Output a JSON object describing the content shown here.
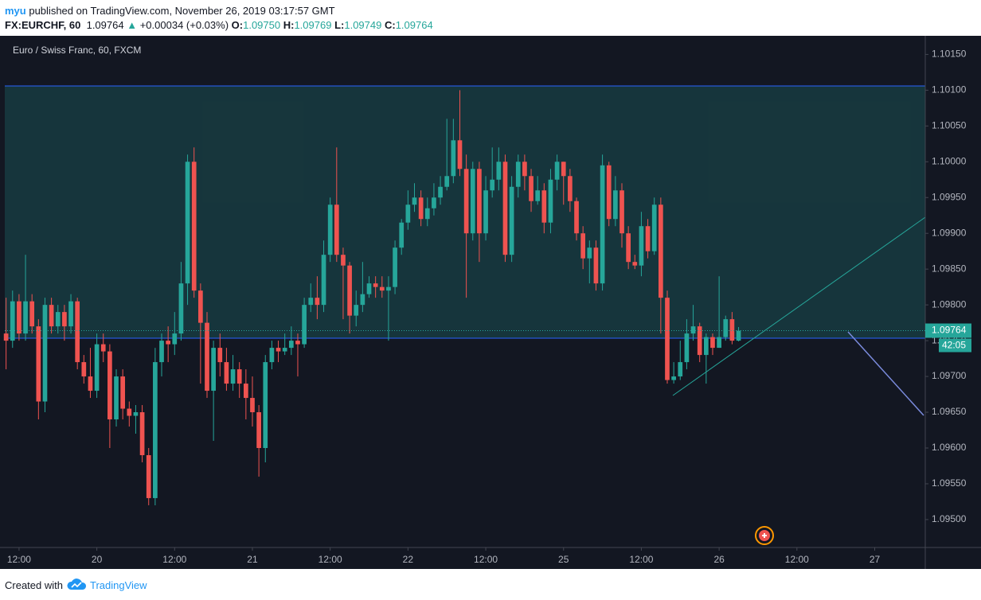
{
  "header": {
    "author": "myu",
    "published": " published on TradingView.com, November 26, 2019 03:17:57 GMT",
    "symbol": "FX:EURCHF, 60",
    "last": "1.09764",
    "arrow": "▲",
    "change": "+0.00034 (+0.03%)",
    "o_label": "O:",
    "o": "1.09750",
    "h_label": "H:",
    "h": "1.09769",
    "l_label": "L:",
    "l": "1.09749",
    "c_label": "C:",
    "c": "1.09764"
  },
  "chart_data": {
    "type": "candlestick",
    "title": "Euro / Swiss Franc, 60, FXCM",
    "up_color": "#26a69a",
    "down_color": "#ef5350",
    "grid": true,
    "countdown": "42:05",
    "open": [
      1.0976,
      1.0975,
      1.09805,
      1.0976,
      1.09805,
      1.0977,
      1.09665,
      1.098,
      1.0977,
      1.0979,
      1.0977,
      1.09805,
      1.0972,
      1.097,
      1.0968,
      1.09745,
      1.09735,
      1.0964,
      1.097,
      1.09655,
      1.09645,
      1.0965,
      1.0959,
      1.0953,
      1.0972,
      1.0975,
      1.09745,
      1.0976,
      1.0983,
      1.1,
      1.0982,
      1.09775,
      1.0968,
      1.0974,
      1.0972,
      1.0969,
      1.0971,
      1.0969,
      1.0967,
      1.0965,
      1.096,
      1.0972,
      1.0974,
      1.09735,
      1.0974,
      1.0975,
      1.09745,
      1.098,
      1.0981,
      1.098,
      1.0987,
      1.0994,
      1.0987,
      1.09855,
      1.09785,
      1.098,
      1.09815,
      1.0983,
      1.09825,
      1.0982,
      1.09825,
      1.0988,
      1.09915,
      1.0994,
      1.0995,
      1.0992,
      1.09935,
      1.0995,
      1.09965,
      1.0998,
      1.1003,
      1.0999,
      1.099,
      1.0999,
      1.099,
      1.0996,
      1.09975,
      1.1,
      1.0987,
      1.09965,
      1.1,
      1.0998,
      1.09945,
      1.0996,
      1.09915,
      1.09975,
      1.1,
      1.0998,
      1.09945,
      1.099,
      1.09865,
      1.0988,
      1.0983,
      1.09995,
      1.0992,
      1.0996,
      1.099,
      1.0986,
      1.09855,
      1.0991,
      1.09875,
      1.0994,
      1.0981,
      1.09695,
      1.097,
      1.0972,
      1.0976,
      1.0977,
      1.0973,
      1.09755,
      1.0974,
      1.09755,
      1.0978,
      1.0975
    ],
    "high": [
      1.0981,
      1.0982,
      1.09815,
      1.0987,
      1.09815,
      1.0978,
      1.0981,
      1.0981,
      1.098,
      1.098,
      1.09815,
      1.0981,
      1.0973,
      1.0974,
      1.0976,
      1.0976,
      1.09745,
      1.0971,
      1.0971,
      1.09665,
      1.0966,
      1.0966,
      1.096,
      1.0974,
      1.0976,
      1.0977,
      1.0979,
      1.0986,
      1.1001,
      1.1002,
      1.0983,
      1.0979,
      1.0975,
      1.0976,
      1.0974,
      1.0973,
      1.0972,
      1.0971,
      1.097,
      1.0966,
      1.0973,
      1.0975,
      1.0975,
      1.0976,
      1.0977,
      1.0976,
      1.0981,
      1.0983,
      1.0984,
      1.0989,
      1.0995,
      1.1002,
      1.0988,
      1.0986,
      1.0982,
      1.0986,
      1.0984,
      1.0984,
      1.0984,
      1.0984,
      1.0989,
      1.0992,
      1.0996,
      1.0997,
      1.0996,
      1.0995,
      1.0997,
      1.0998,
      1.1006,
      1.1006,
      1.101,
      1.1001,
      1.1,
      1.1,
      1.0998,
      1.1002,
      1.1002,
      1.1001,
      1.0998,
      1.1001,
      1.1001,
      1.0999,
      1.0998,
      1.0997,
      1.0999,
      1.1001,
      1.1,
      1.0999,
      1.0995,
      1.0991,
      1.0989,
      1.0989,
      1.1001,
      1.1,
      1.0998,
      1.0997,
      1.0991,
      1.0987,
      1.0993,
      1.0992,
      1.0995,
      1.0995,
      1.0982,
      1.0972,
      1.0975,
      1.0978,
      1.098,
      1.09775,
      1.0976,
      1.0976,
      1.0984,
      1.09785,
      1.0979,
      1.09769
    ],
    "low": [
      1.0971,
      1.0974,
      1.0975,
      1.0975,
      1.0976,
      1.0964,
      1.0965,
      1.0976,
      1.0976,
      1.0975,
      1.0976,
      1.0971,
      1.0969,
      1.0967,
      1.0967,
      1.0972,
      1.096,
      1.0963,
      1.0964,
      1.0963,
      1.0962,
      1.0958,
      1.0952,
      1.0952,
      1.097,
      1.0972,
      1.0973,
      1.0975,
      1.098,
      1.0981,
      1.0969,
      1.0967,
      1.0961,
      1.097,
      1.0968,
      1.0968,
      1.0967,
      1.0964,
      1.0963,
      1.0956,
      1.0958,
      1.0971,
      1.0972,
      1.0973,
      1.0973,
      1.097,
      1.0974,
      1.0979,
      1.0978,
      1.0979,
      1.0986,
      1.0986,
      1.0978,
      1.0976,
      1.0977,
      1.0979,
      1.0981,
      1.0981,
      1.0981,
      1.0975,
      1.09815,
      1.0987,
      1.09905,
      1.0993,
      1.0991,
      1.0991,
      1.09925,
      1.0994,
      1.0996,
      1.0997,
      1.0998,
      1.0981,
      1.0989,
      1.0986,
      1.0989,
      1.0995,
      1.0996,
      1.0986,
      1.0986,
      1.0995,
      1.0996,
      1.0993,
      1.0994,
      1.099,
      1.099,
      1.0996,
      1.0994,
      1.0993,
      1.0989,
      1.0985,
      1.0983,
      1.0982,
      1.0982,
      1.0991,
      1.0991,
      1.0988,
      1.0985,
      1.0985,
      1.0984,
      1.09865,
      1.0987,
      1.0976,
      1.0969,
      1.0969,
      1.09695,
      1.0971,
      1.0975,
      1.0972,
      1.0969,
      1.0973,
      1.0974,
      1.0975,
      1.09745,
      1.09749
    ],
    "close": [
      1.0975,
      1.09805,
      1.0976,
      1.09805,
      1.0977,
      1.09665,
      1.098,
      1.0977,
      1.0979,
      1.0977,
      1.09805,
      1.0972,
      1.097,
      1.0968,
      1.09745,
      1.09735,
      1.0964,
      1.097,
      1.09655,
      1.09645,
      1.0965,
      1.0959,
      1.0953,
      1.0972,
      1.0975,
      1.09745,
      1.0976,
      1.0983,
      1.1,
      1.0982,
      1.09775,
      1.0968,
      1.0974,
      1.0972,
      1.0969,
      1.0971,
      1.0969,
      1.0967,
      1.0965,
      1.096,
      1.0972,
      1.0974,
      1.09735,
      1.0974,
      1.0975,
      1.09745,
      1.098,
      1.0981,
      1.098,
      1.0987,
      1.0994,
      1.0987,
      1.09855,
      1.09785,
      1.098,
      1.09815,
      1.0983,
      1.09825,
      1.0982,
      1.09825,
      1.0988,
      1.09915,
      1.0994,
      1.0995,
      1.0992,
      1.09935,
      1.0995,
      1.09965,
      1.0998,
      1.1003,
      1.0999,
      1.099,
      1.0999,
      1.099,
      1.0996,
      1.09975,
      1.1,
      1.0987,
      1.09965,
      1.1,
      1.0998,
      1.09945,
      1.0996,
      1.09915,
      1.09975,
      1.1,
      1.0998,
      1.09945,
      1.099,
      1.09865,
      1.0988,
      1.0983,
      1.09995,
      1.0992,
      1.0996,
      1.099,
      1.0986,
      1.09855,
      1.0991,
      1.09875,
      1.0994,
      1.0981,
      1.09695,
      1.097,
      1.0972,
      1.0976,
      1.0977,
      1.0973,
      1.09755,
      1.0974,
      1.09755,
      1.0978,
      1.0975,
      1.09764
    ],
    "xlim": [
      -0.2,
      141.8
    ],
    "xticks": [
      {
        "value": 2,
        "label": "12:00"
      },
      {
        "value": 14,
        "label": "20"
      },
      {
        "value": 26,
        "label": "12:00"
      },
      {
        "value": 38,
        "label": "21"
      },
      {
        "value": 50,
        "label": "12:00"
      },
      {
        "value": 62,
        "label": "22"
      },
      {
        "value": 74,
        "label": "12:00"
      },
      {
        "value": 86,
        "label": "25"
      },
      {
        "value": 98,
        "label": "12:00"
      },
      {
        "value": 110,
        "label": "26"
      },
      {
        "value": 122,
        "label": "12:00"
      },
      {
        "value": 134,
        "label": "27"
      }
    ],
    "ylim": [
      1.09461,
      1.10176
    ],
    "yticks": [
      {
        "value": 1.1015,
        "label": "1.10150"
      },
      {
        "value": 1.101,
        "label": "1.10100"
      },
      {
        "value": 1.1005,
        "label": "1.10050"
      },
      {
        "value": 1.1,
        "label": "1.10000"
      },
      {
        "value": 1.0995,
        "label": "1.09950"
      },
      {
        "value": 1.099,
        "label": "1.09900"
      },
      {
        "value": 1.0985,
        "label": "1.09850"
      },
      {
        "value": 1.098,
        "label": "1.09800"
      },
      {
        "value": 1.0975,
        "label": "1.09750"
      },
      {
        "value": 1.097,
        "label": "1.09700"
      },
      {
        "value": 1.0965,
        "label": "1.09650"
      },
      {
        "value": 1.096,
        "label": "1.09600"
      },
      {
        "value": 1.0955,
        "label": "1.09550"
      },
      {
        "value": 1.095,
        "label": "1.09500"
      }
    ]
  },
  "footer": {
    "created": "Created with",
    "brand": "TradingView"
  }
}
